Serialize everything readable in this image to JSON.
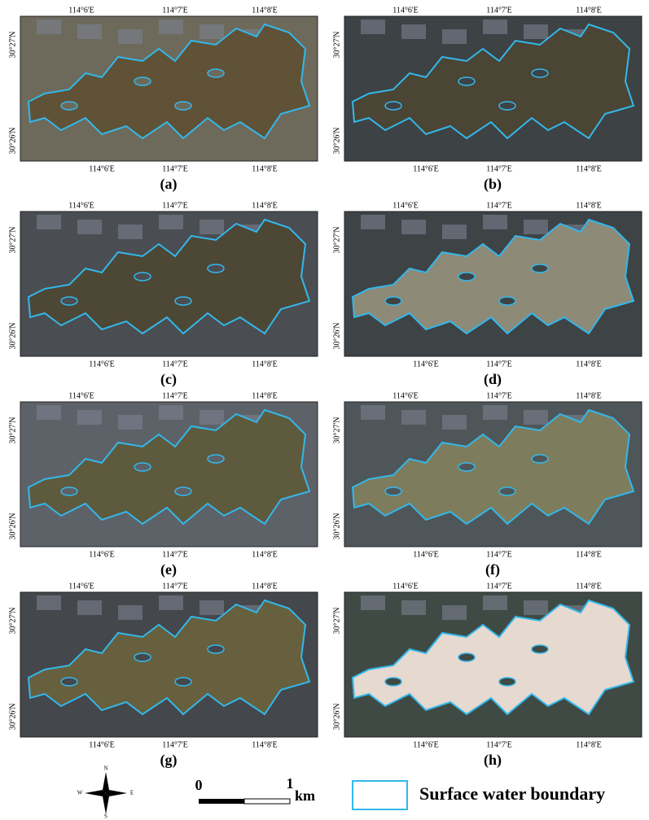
{
  "panels": [
    {
      "label": "(a)",
      "ground": "#6d6a5c",
      "water": "#5f5237"
    },
    {
      "label": "(b)",
      "ground": "#3d4245",
      "water": "#4a4534"
    },
    {
      "label": "(c)",
      "ground": "#4a4d52",
      "water": "#4d4736"
    },
    {
      "label": "(d)",
      "ground": "#3e4346",
      "water": "#8d8a78"
    },
    {
      "label": "(e)",
      "ground": "#5d6269",
      "water": "#5e5a3e"
    },
    {
      "label": "(f)",
      "ground": "#4f5659",
      "water": "#7d7d5e"
    },
    {
      "label": "(g)",
      "ground": "#44474b",
      "water": "#66603f"
    },
    {
      "label": "(h)",
      "ground": "#3f4a45",
      "water": "#e6d9d0"
    }
  ],
  "lon_ticks": [
    "114°6'E",
    "114°7'E",
    "114°8'E"
  ],
  "lat_ticks": [
    "30°27'N",
    "30°26'N"
  ],
  "boundary_color": "#33b8ea",
  "legend": {
    "compass": [
      "N",
      "E",
      "S",
      "W"
    ],
    "scale": [
      "0",
      "1"
    ],
    "unit": "km",
    "label": "Surface water boundary"
  }
}
